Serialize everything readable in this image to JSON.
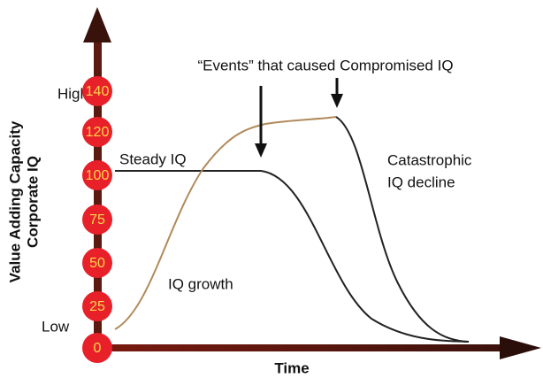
{
  "y_axis": {
    "title_lines": [
      "Value Adding Capacity",
      "Corporate IQ"
    ],
    "high": "High",
    "low": "Low",
    "scale": [
      "0",
      "25",
      "50",
      "75",
      "100",
      "120",
      "140"
    ]
  },
  "x_axis": {
    "title": "Time"
  },
  "annotations": {
    "events": "“Events” that caused Compromised IQ",
    "steady": "Steady IQ",
    "catastrophic": [
      "Catastrophic",
      "IQ decline"
    ],
    "growth": "IQ growth"
  }
}
